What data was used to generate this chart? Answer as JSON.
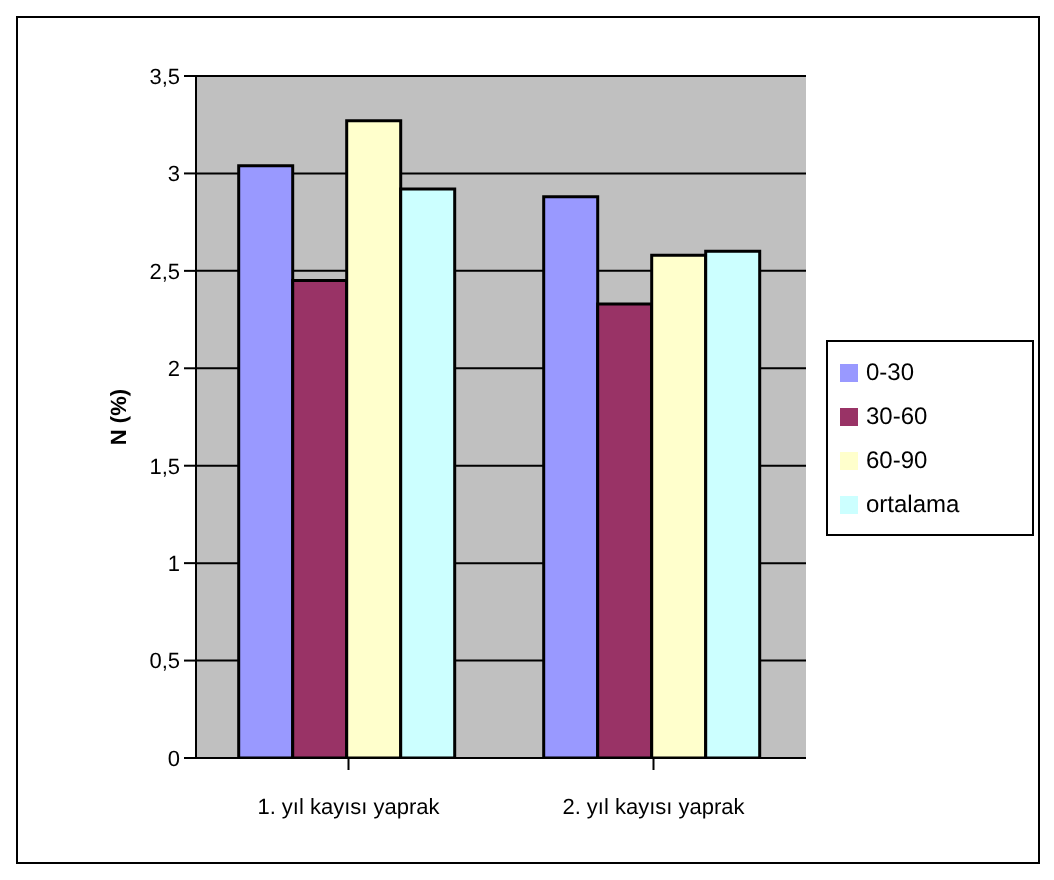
{
  "chart_data": {
    "type": "bar",
    "ylabel": "N (%)",
    "categories": [
      "1. yıl kayısı yaprak",
      "2. yıl kayısı yaprak"
    ],
    "series": [
      {
        "name": "0-30",
        "color": "#9999ff",
        "values": [
          3.04,
          2.88
        ]
      },
      {
        "name": "30-60",
        "color": "#993366",
        "values": [
          2.45,
          2.33
        ]
      },
      {
        "name": "60-90",
        "color": "#ffffcc",
        "values": [
          3.27,
          2.58
        ]
      },
      {
        "name": "ortalama",
        "color": "#ccffff",
        "values": [
          2.92,
          2.6
        ]
      }
    ],
    "ylim": [
      0,
      3.5
    ],
    "yticks": [
      {
        "value": 0,
        "label": "0"
      },
      {
        "value": 0.5,
        "label": "0,5"
      },
      {
        "value": 1,
        "label": "1"
      },
      {
        "value": 1.5,
        "label": "1,5"
      },
      {
        "value": 2,
        "label": "2"
      },
      {
        "value": 2.5,
        "label": "2,5"
      },
      {
        "value": 3,
        "label": "3"
      },
      {
        "value": 3.5,
        "label": "3,5"
      }
    ],
    "grid": "y",
    "legend": "right"
  }
}
